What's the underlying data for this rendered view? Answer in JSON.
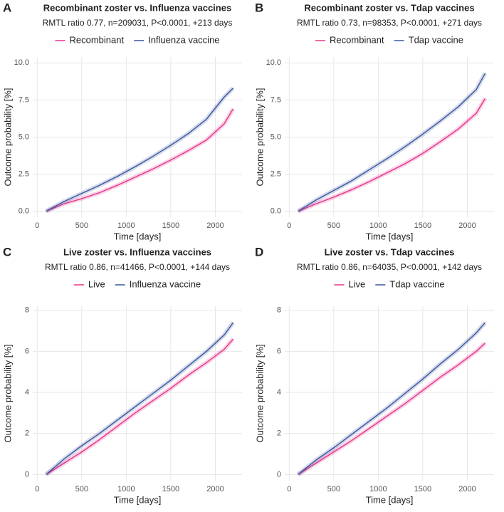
{
  "chart_data": [
    {
      "type": "line",
      "panel": "A",
      "title": "Recombinant zoster vs. Influenza vaccines",
      "subtitle": "RMTL ratio 0.77, n=209031, P<0.0001, +213 days",
      "x_label": "Time [days]",
      "y_label": "Outcome probability [%]",
      "x": [
        100,
        300,
        500,
        700,
        900,
        1100,
        1300,
        1500,
        1700,
        1900,
        2100,
        2200
      ],
      "series": [
        {
          "name": "Recombinant",
          "color": "#e8338a",
          "values": [
            0,
            0.5,
            0.85,
            1.25,
            1.75,
            2.3,
            2.85,
            3.45,
            4.1,
            4.8,
            5.9,
            6.9
          ]
        },
        {
          "name": "Influenza vaccine",
          "color": "#3a559f",
          "values": [
            0,
            0.65,
            1.2,
            1.75,
            2.35,
            3.0,
            3.7,
            4.45,
            5.25,
            6.2,
            7.7,
            8.3
          ]
        }
      ],
      "xlim": [
        -50,
        2300
      ],
      "xticks": [
        0,
        500,
        1000,
        1500,
        2000
      ],
      "ylim": [
        -0.4,
        10.4
      ],
      "yticks": [
        {
          "value": 0,
          "label": "0.0"
        },
        {
          "value": 2.5,
          "label": "2.5"
        },
        {
          "value": 5,
          "label": "5.0"
        },
        {
          "value": 7.5,
          "label": "7.5"
        },
        {
          "value": 10,
          "label": "10.0"
        }
      ],
      "grid": true
    },
    {
      "type": "line",
      "panel": "B",
      "title": "Recombinant zoster vs. Tdap vaccines",
      "subtitle": "RMTL ratio 0.73, n=98353, P<0.0001, +271 days",
      "x_label": "Time [days]",
      "y_label": "Outcome probability [%]",
      "x": [
        100,
        300,
        500,
        700,
        900,
        1100,
        1300,
        1500,
        1700,
        1900,
        2100,
        2200
      ],
      "series": [
        {
          "name": "Recombinant",
          "color": "#e8338a",
          "values": [
            0,
            0.5,
            0.95,
            1.45,
            2.0,
            2.6,
            3.2,
            3.9,
            4.7,
            5.55,
            6.6,
            7.6
          ]
        },
        {
          "name": "Tdap vaccine",
          "color": "#3a559f",
          "values": [
            0,
            0.75,
            1.4,
            2.05,
            2.8,
            3.55,
            4.35,
            5.2,
            6.1,
            7.05,
            8.2,
            9.3
          ]
        }
      ],
      "xlim": [
        -50,
        2300
      ],
      "xticks": [
        0,
        500,
        1000,
        1500,
        2000
      ],
      "ylim": [
        -0.4,
        10.4
      ],
      "yticks": [
        {
          "value": 0,
          "label": "0.0"
        },
        {
          "value": 2.5,
          "label": "2.5"
        },
        {
          "value": 5,
          "label": "5.0"
        },
        {
          "value": 7.5,
          "label": "7.5"
        },
        {
          "value": 10,
          "label": "10.0"
        }
      ],
      "grid": true
    },
    {
      "type": "line",
      "panel": "C",
      "title": "Live zoster vs. Influenza vaccines",
      "subtitle": "RMTL ratio 0.86, n=41466, P<0.0001, +144 days",
      "x_label": "Time [days]",
      "y_label": "Outcome probability [%]",
      "x": [
        100,
        300,
        500,
        700,
        900,
        1100,
        1300,
        1500,
        1700,
        1900,
        2100,
        2200
      ],
      "series": [
        {
          "name": "Live",
          "color": "#e8338a",
          "values": [
            0,
            0.55,
            1.1,
            1.7,
            2.35,
            3.0,
            3.6,
            4.2,
            4.85,
            5.45,
            6.1,
            6.6
          ]
        },
        {
          "name": "Influenza vaccine",
          "color": "#3a559f",
          "values": [
            0,
            0.75,
            1.4,
            2.0,
            2.65,
            3.3,
            3.95,
            4.6,
            5.3,
            6.0,
            6.8,
            7.4
          ]
        }
      ],
      "xlim": [
        -50,
        2300
      ],
      "xticks": [
        0,
        500,
        1000,
        1500,
        2000
      ],
      "ylim": [
        -0.3,
        8.2
      ],
      "yticks": [
        0,
        2,
        4,
        6,
        8
      ],
      "grid": true
    },
    {
      "type": "line",
      "panel": "D",
      "title": "Live zoster vs. Tdap vaccines",
      "subtitle": "RMTL ratio 0.86, n=64035, P<0.0001, +142 days",
      "x_label": "Time [days]",
      "y_label": "Outcome probability [%]",
      "x": [
        100,
        300,
        500,
        700,
        900,
        1100,
        1300,
        1500,
        1700,
        1900,
        2100,
        2200
      ],
      "series": [
        {
          "name": "Live",
          "color": "#e8338a",
          "values": [
            0,
            0.55,
            1.1,
            1.65,
            2.25,
            2.85,
            3.45,
            4.1,
            4.75,
            5.35,
            6.0,
            6.4
          ]
        },
        {
          "name": "Tdap vaccine",
          "color": "#3a559f",
          "values": [
            0,
            0.7,
            1.3,
            1.95,
            2.6,
            3.25,
            3.95,
            4.65,
            5.4,
            6.1,
            6.9,
            7.4
          ]
        }
      ],
      "xlim": [
        -50,
        2300
      ],
      "xticks": [
        0,
        500,
        1000,
        1500,
        2000
      ],
      "ylim": [
        -0.3,
        8.2
      ],
      "yticks": [
        0,
        2,
        4,
        6,
        8
      ],
      "grid": true
    }
  ]
}
